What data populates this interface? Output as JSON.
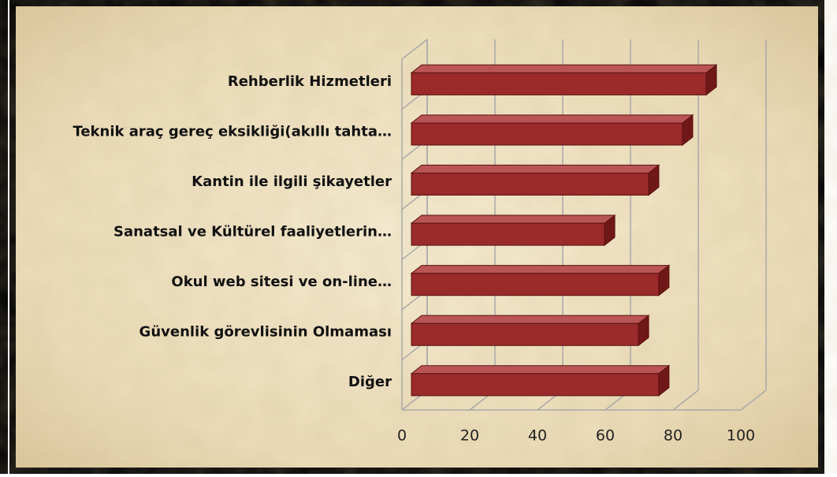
{
  "chart_data": {
    "type": "bar3d_horizontal",
    "categories": [
      "Rehberlik Hizmetleri",
      "Teknik araç gereç eksikliği(akıllı tahta…",
      "Kantin ile ilgili şikayetler",
      "Sanatsal ve Kültürel faaliyetlerin…",
      "Okul web sitesi ve on-line…",
      "Güvenlik görevlisinin Olmaması",
      "Diğer"
    ],
    "values": [
      87,
      80,
      70,
      57,
      73,
      67,
      73
    ],
    "color": "#9b2a2a",
    "xlim": [
      0,
      100
    ],
    "xticks": [
      0,
      20,
      40,
      60,
      80,
      100
    ],
    "grid": true
  }
}
